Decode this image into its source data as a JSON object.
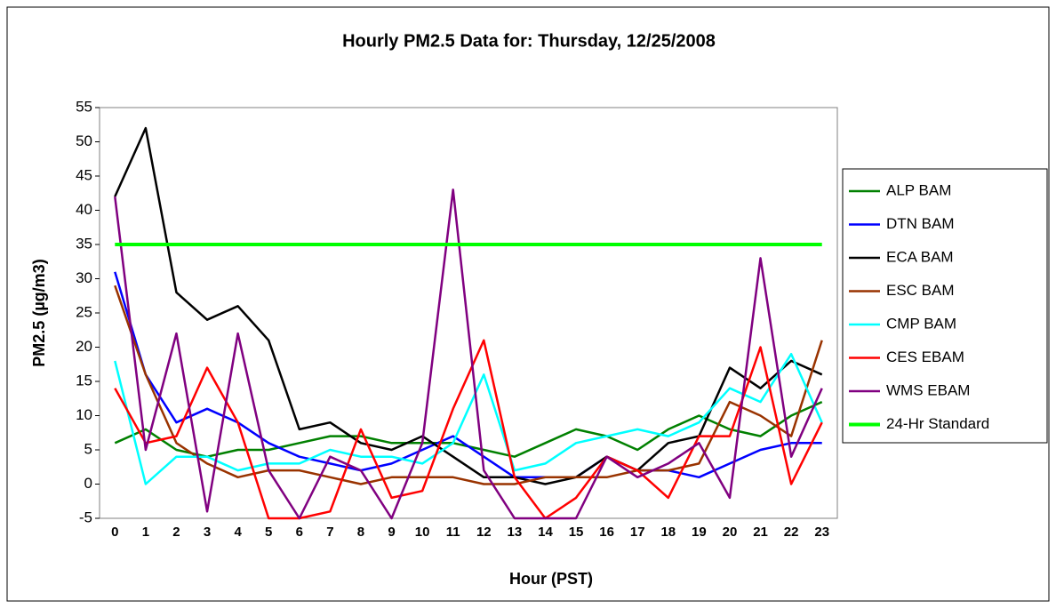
{
  "chart_data": {
    "type": "line",
    "title": "Hourly PM2.5 Data for:  Thursday, 12/25/2008",
    "x_label": "Hour (PST)",
    "y_label": "PM2.5 (µg/m3)",
    "categories": [
      "0",
      "1",
      "2",
      "3",
      "4",
      "5",
      "6",
      "7",
      "8",
      "9",
      "10",
      "11",
      "12",
      "13",
      "14",
      "15",
      "16",
      "17",
      "18",
      "19",
      "20",
      "21",
      "22",
      "23"
    ],
    "ylim": [
      -5,
      55
    ],
    "yticks": [
      -5,
      0,
      5,
      10,
      15,
      20,
      25,
      30,
      35,
      40,
      45,
      50,
      55
    ],
    "grid": false,
    "legend": "right",
    "series": [
      {
        "name": "ALP BAM",
        "color": "#008000",
        "values": [
          6,
          8,
          5,
          4,
          5,
          5,
          6,
          7,
          7,
          6,
          6,
          6,
          5,
          4,
          6,
          8,
          7,
          5,
          8,
          10,
          8,
          7,
          10,
          12
        ]
      },
      {
        "name": "DTN BAM",
        "color": "#0000ff",
        "values": [
          31,
          16,
          9,
          11,
          9,
          6,
          4,
          3,
          2,
          3,
          5,
          7,
          4,
          1,
          1,
          1,
          4,
          2,
          2,
          1,
          3,
          5,
          6,
          6
        ]
      },
      {
        "name": "ECA BAM",
        "color": "#000000",
        "values": [
          42,
          52,
          28,
          24,
          26,
          21,
          8,
          9,
          6,
          5,
          7,
          4,
          1,
          1,
          0,
          1,
          4,
          2,
          6,
          7,
          17,
          14,
          18,
          16
        ]
      },
      {
        "name": "ESC BAM",
        "color": "#993300",
        "values": [
          29,
          16,
          6,
          3,
          1,
          2,
          2,
          1,
          0,
          1,
          1,
          1,
          0,
          0,
          1,
          1,
          1,
          2,
          2,
          3,
          12,
          10,
          7,
          21
        ]
      },
      {
        "name": "CMP BAM",
        "color": "#00ffff",
        "values": [
          18,
          0,
          4,
          4,
          2,
          3,
          3,
          5,
          4,
          4,
          3,
          6,
          16,
          2,
          3,
          6,
          7,
          8,
          7,
          9,
          14,
          12,
          19,
          9
        ]
      },
      {
        "name": "CES EBAM",
        "color": "#ff0000",
        "values": [
          14,
          6,
          7,
          17,
          9,
          -5,
          -5,
          -4,
          8,
          -2,
          -1,
          11,
          21,
          1,
          -5,
          -2,
          4,
          2,
          -2,
          7,
          7,
          20,
          0,
          9
        ]
      },
      {
        "name": "WMS EBAM",
        "color": "#800080",
        "values": [
          42,
          5,
          22,
          -4,
          22,
          2,
          -5,
          4,
          2,
          -5,
          6,
          43,
          2,
          -5,
          -5,
          -5,
          4,
          1,
          3,
          6,
          -2,
          33,
          4,
          14
        ]
      },
      {
        "name": "24-Hr Standard",
        "color": "#00ff00",
        "values": [
          35,
          35,
          35,
          35,
          35,
          35,
          35,
          35,
          35,
          35,
          35,
          35,
          35,
          35,
          35,
          35,
          35,
          35,
          35,
          35,
          35,
          35,
          35,
          35
        ]
      }
    ]
  }
}
